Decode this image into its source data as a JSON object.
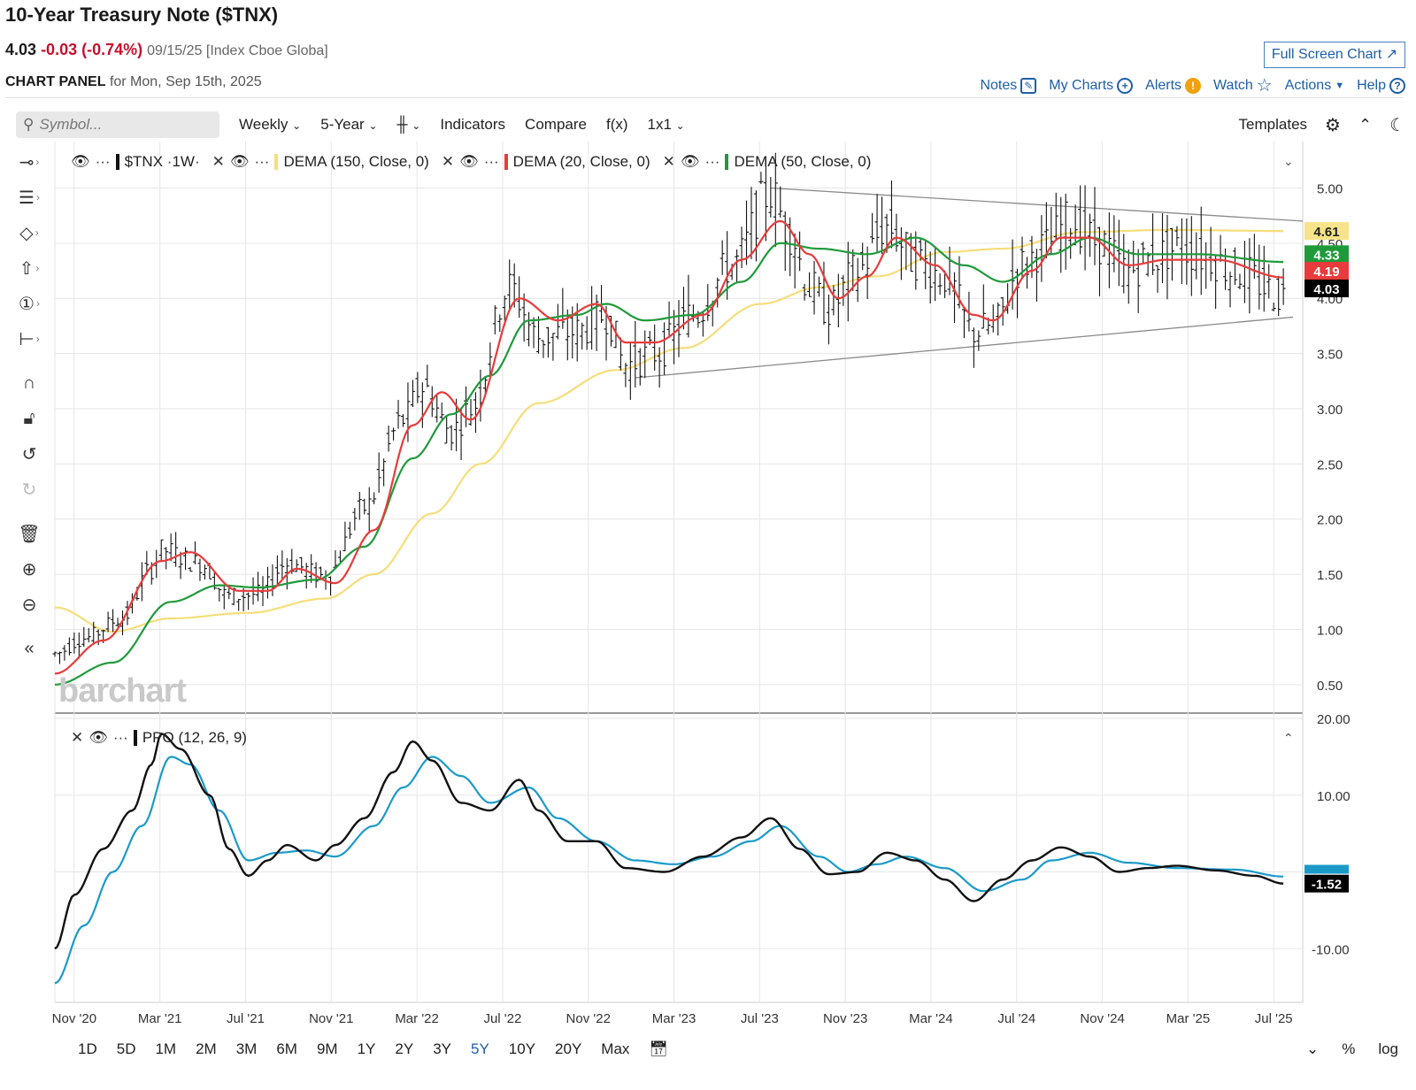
{
  "header": {
    "title": "10-Year Treasury Note ($TNX)",
    "last": "4.03",
    "change": "-0.03 (-0.74%)",
    "meta": "09/15/25 [Index Cboe Globa]",
    "full_screen_label": "Full Screen Chart",
    "panel_label": "CHART PANEL",
    "panel_for": "for Mon, Sep 15th, 2025"
  },
  "toplinks": {
    "notes": "Notes",
    "my_charts": "My Charts",
    "alerts": "Alerts",
    "watch": "Watch",
    "actions": "Actions",
    "help": "Help"
  },
  "toolbar": {
    "search_placeholder": "Symbol...",
    "interval": "Weekly",
    "range": "5-Year",
    "indicators": "Indicators",
    "compare": "Compare",
    "fx": "f(x)",
    "layout": "1x1",
    "templates": "Templates"
  },
  "legend": {
    "symbol": "$TNX",
    "symbol_interval": "1W",
    "dema150": "DEMA (150, Close, 0)",
    "dema20": "DEMA (20, Close, 0)",
    "dema50": "DEMA (50, Close, 0)",
    "ppo": "PPO (12, 26, 9)"
  },
  "watermark": "barchart",
  "timeframes": [
    "1D",
    "5D",
    "1M",
    "2M",
    "3M",
    "6M",
    "9M",
    "1Y",
    "2Y",
    "3Y",
    "5Y",
    "10Y",
    "20Y",
    "Max"
  ],
  "active_timeframe": "5Y",
  "bottom_right": {
    "percent": "%",
    "log": "log"
  },
  "colors": {
    "dema150": "#f5de7a",
    "dema20": "#e83b3b",
    "dema50": "#1f9a3a",
    "price": "#111111",
    "ppo": "#111111",
    "signal": "#1a9ac9",
    "accent": "#1d5fa8"
  },
  "chart_data": [
    {
      "type": "ohlc",
      "title": "",
      "x_ticks": [
        "Nov '20",
        "Mar '21",
        "Jul '21",
        "Nov '21",
        "Mar '22",
        "Jul '22",
        "Nov '22",
        "Mar '23",
        "Jul '23",
        "Nov '23",
        "Mar '24",
        "Jul '24",
        "Nov '24",
        "Mar '25",
        "Jul '25"
      ],
      "y_ticks": [
        "5.00",
        "4.50",
        "4.00",
        "3.50",
        "3.00",
        "2.50",
        "2.00",
        "1.50",
        "1.00",
        "0.50"
      ],
      "ylim": [
        0.25,
        5.1
      ],
      "grid": true,
      "last_values": {
        "dema150": "4.61",
        "dema50": "4.33",
        "dema20": "4.19",
        "price": "4.03"
      },
      "price_anchors": [
        {
          "t": 0,
          "v": 0.78
        },
        {
          "t": 6,
          "v": 0.92
        },
        {
          "t": 14,
          "v": 1.1
        },
        {
          "t": 20,
          "v": 1.55
        },
        {
          "t": 22,
          "v": 1.72
        },
        {
          "t": 30,
          "v": 1.6
        },
        {
          "t": 36,
          "v": 1.3
        },
        {
          "t": 42,
          "v": 1.32
        },
        {
          "t": 48,
          "v": 1.6
        },
        {
          "t": 56,
          "v": 1.48
        },
        {
          "t": 64,
          "v": 2.1
        },
        {
          "t": 72,
          "v": 2.9
        },
        {
          "t": 76,
          "v": 3.2
        },
        {
          "t": 82,
          "v": 2.8
        },
        {
          "t": 86,
          "v": 3.0
        },
        {
          "t": 94,
          "v": 4.1
        },
        {
          "t": 100,
          "v": 3.65
        },
        {
          "t": 108,
          "v": 3.7
        },
        {
          "t": 114,
          "v": 3.85
        },
        {
          "t": 118,
          "v": 3.4
        },
        {
          "t": 124,
          "v": 3.5
        },
        {
          "t": 132,
          "v": 3.85
        },
        {
          "t": 140,
          "v": 4.3
        },
        {
          "t": 148,
          "v": 4.95
        },
        {
          "t": 152,
          "v": 4.6
        },
        {
          "t": 156,
          "v": 4.1
        },
        {
          "t": 160,
          "v": 3.9
        },
        {
          "t": 166,
          "v": 4.25
        },
        {
          "t": 172,
          "v": 4.65
        },
        {
          "t": 178,
          "v": 4.35
        },
        {
          "t": 184,
          "v": 4.2
        },
        {
          "t": 190,
          "v": 3.7
        },
        {
          "t": 194,
          "v": 3.75
        },
        {
          "t": 200,
          "v": 4.3
        },
        {
          "t": 204,
          "v": 4.45
        },
        {
          "t": 210,
          "v": 4.7
        },
        {
          "t": 216,
          "v": 4.5
        },
        {
          "t": 222,
          "v": 4.25
        },
        {
          "t": 226,
          "v": 4.35
        },
        {
          "t": 232,
          "v": 4.45
        },
        {
          "t": 238,
          "v": 4.38
        },
        {
          "t": 244,
          "v": 4.25
        },
        {
          "t": 254,
          "v": 4.03
        }
      ],
      "dema20_anchors": [
        {
          "t": 0,
          "v": 0.6
        },
        {
          "t": 10,
          "v": 0.9
        },
        {
          "t": 22,
          "v": 1.62
        },
        {
          "t": 28,
          "v": 1.7
        },
        {
          "t": 38,
          "v": 1.35
        },
        {
          "t": 44,
          "v": 1.35
        },
        {
          "t": 50,
          "v": 1.55
        },
        {
          "t": 58,
          "v": 1.42
        },
        {
          "t": 66,
          "v": 1.9
        },
        {
          "t": 74,
          "v": 2.85
        },
        {
          "t": 80,
          "v": 3.15
        },
        {
          "t": 86,
          "v": 2.9
        },
        {
          "t": 96,
          "v": 4.0
        },
        {
          "t": 104,
          "v": 3.8
        },
        {
          "t": 112,
          "v": 3.95
        },
        {
          "t": 118,
          "v": 3.6
        },
        {
          "t": 124,
          "v": 3.6
        },
        {
          "t": 134,
          "v": 3.85
        },
        {
          "t": 142,
          "v": 4.35
        },
        {
          "t": 150,
          "v": 4.7
        },
        {
          "t": 156,
          "v": 4.4
        },
        {
          "t": 162,
          "v": 4.0
        },
        {
          "t": 168,
          "v": 4.2
        },
        {
          "t": 174,
          "v": 4.55
        },
        {
          "t": 182,
          "v": 4.3
        },
        {
          "t": 190,
          "v": 3.85
        },
        {
          "t": 194,
          "v": 3.8
        },
        {
          "t": 202,
          "v": 4.25
        },
        {
          "t": 208,
          "v": 4.55
        },
        {
          "t": 214,
          "v": 4.55
        },
        {
          "t": 222,
          "v": 4.3
        },
        {
          "t": 230,
          "v": 4.35
        },
        {
          "t": 240,
          "v": 4.35
        },
        {
          "t": 254,
          "v": 4.19
        }
      ],
      "dema50_anchors": [
        {
          "t": 0,
          "v": 0.5
        },
        {
          "t": 12,
          "v": 0.7
        },
        {
          "t": 24,
          "v": 1.25
        },
        {
          "t": 34,
          "v": 1.4
        },
        {
          "t": 42,
          "v": 1.38
        },
        {
          "t": 54,
          "v": 1.45
        },
        {
          "t": 64,
          "v": 1.75
        },
        {
          "t": 74,
          "v": 2.55
        },
        {
          "t": 82,
          "v": 2.95
        },
        {
          "t": 90,
          "v": 3.3
        },
        {
          "t": 98,
          "v": 3.8
        },
        {
          "t": 108,
          "v": 3.85
        },
        {
          "t": 114,
          "v": 3.95
        },
        {
          "t": 122,
          "v": 3.8
        },
        {
          "t": 132,
          "v": 3.85
        },
        {
          "t": 142,
          "v": 4.15
        },
        {
          "t": 150,
          "v": 4.5
        },
        {
          "t": 158,
          "v": 4.45
        },
        {
          "t": 168,
          "v": 4.4
        },
        {
          "t": 178,
          "v": 4.55
        },
        {
          "t": 188,
          "v": 4.3
        },
        {
          "t": 196,
          "v": 4.15
        },
        {
          "t": 206,
          "v": 4.4
        },
        {
          "t": 214,
          "v": 4.55
        },
        {
          "t": 224,
          "v": 4.4
        },
        {
          "t": 236,
          "v": 4.4
        },
        {
          "t": 254,
          "v": 4.33
        }
      ],
      "dema150_anchors": [
        {
          "t": 0,
          "v": 1.2
        },
        {
          "t": 12,
          "v": 0.98
        },
        {
          "t": 24,
          "v": 1.1
        },
        {
          "t": 40,
          "v": 1.15
        },
        {
          "t": 56,
          "v": 1.28
        },
        {
          "t": 66,
          "v": 1.5
        },
        {
          "t": 78,
          "v": 2.05
        },
        {
          "t": 88,
          "v": 2.5
        },
        {
          "t": 100,
          "v": 3.05
        },
        {
          "t": 116,
          "v": 3.35
        },
        {
          "t": 130,
          "v": 3.55
        },
        {
          "t": 146,
          "v": 3.95
        },
        {
          "t": 158,
          "v": 4.1
        },
        {
          "t": 170,
          "v": 4.2
        },
        {
          "t": 184,
          "v": 4.42
        },
        {
          "t": 196,
          "v": 4.45
        },
        {
          "t": 212,
          "v": 4.6
        },
        {
          "t": 230,
          "v": 4.62
        },
        {
          "t": 254,
          "v": 4.61
        }
      ],
      "trendlines": [
        {
          "from": {
            "t": 148,
            "v": 5.0
          },
          "to": {
            "t": 258,
            "v": 4.7
          }
        },
        {
          "from": {
            "t": 120,
            "v": 3.28
          },
          "to": {
            "t": 256,
            "v": 3.83
          }
        }
      ]
    },
    {
      "type": "line",
      "title": "",
      "y_ticks": [
        "20.00",
        "10.00",
        "",
        "-10.00"
      ],
      "ylim": [
        -17,
        20
      ],
      "last_value": "-1.52",
      "series": [
        {
          "name": "PPO (12, 26, 9)",
          "values": [
            {
              "t": 0,
              "v": -10
            },
            {
              "t": 4,
              "v": -3
            },
            {
              "t": 10,
              "v": 3
            },
            {
              "t": 16,
              "v": 8
            },
            {
              "t": 20,
              "v": 14
            },
            {
              "t": 22,
              "v": 18
            },
            {
              "t": 26,
              "v": 16
            },
            {
              "t": 32,
              "v": 10
            },
            {
              "t": 36,
              "v": 3
            },
            {
              "t": 40,
              "v": -0.5
            },
            {
              "t": 44,
              "v": 1.5
            },
            {
              "t": 48,
              "v": 3.5
            },
            {
              "t": 54,
              "v": 1.5
            },
            {
              "t": 58,
              "v": 3.5
            },
            {
              "t": 64,
              "v": 7
            },
            {
              "t": 70,
              "v": 13
            },
            {
              "t": 74,
              "v": 17
            },
            {
              "t": 78,
              "v": 14.5
            },
            {
              "t": 84,
              "v": 9
            },
            {
              "t": 90,
              "v": 8
            },
            {
              "t": 96,
              "v": 12
            },
            {
              "t": 100,
              "v": 8
            },
            {
              "t": 106,
              "v": 4
            },
            {
              "t": 112,
              "v": 4
            },
            {
              "t": 118,
              "v": 0.5
            },
            {
              "t": 126,
              "v": 0
            },
            {
              "t": 134,
              "v": 2
            },
            {
              "t": 142,
              "v": 4.5
            },
            {
              "t": 148,
              "v": 7
            },
            {
              "t": 154,
              "v": 3
            },
            {
              "t": 160,
              "v": -0.3
            },
            {
              "t": 166,
              "v": 0
            },
            {
              "t": 172,
              "v": 2.5
            },
            {
              "t": 178,
              "v": 1.5
            },
            {
              "t": 184,
              "v": -1
            },
            {
              "t": 190,
              "v": -3.8
            },
            {
              "t": 196,
              "v": -1
            },
            {
              "t": 202,
              "v": 1.5
            },
            {
              "t": 208,
              "v": 3.2
            },
            {
              "t": 214,
              "v": 2
            },
            {
              "t": 220,
              "v": 0
            },
            {
              "t": 226,
              "v": 0.5
            },
            {
              "t": 232,
              "v": 0.8
            },
            {
              "t": 240,
              "v": 0.2
            },
            {
              "t": 248,
              "v": -0.5
            },
            {
              "t": 254,
              "v": -1.52
            }
          ]
        },
        {
          "name": "signal",
          "values": [
            {
              "t": 0,
              "v": -14.5
            },
            {
              "t": 6,
              "v": -7
            },
            {
              "t": 12,
              "v": 0
            },
            {
              "t": 18,
              "v": 6
            },
            {
              "t": 24,
              "v": 15
            },
            {
              "t": 28,
              "v": 14
            },
            {
              "t": 34,
              "v": 8
            },
            {
              "t": 40,
              "v": 1.5
            },
            {
              "t": 46,
              "v": 2.5
            },
            {
              "t": 52,
              "v": 2.8
            },
            {
              "t": 58,
              "v": 2
            },
            {
              "t": 66,
              "v": 6
            },
            {
              "t": 72,
              "v": 11
            },
            {
              "t": 78,
              "v": 15
            },
            {
              "t": 84,
              "v": 12.5
            },
            {
              "t": 90,
              "v": 9
            },
            {
              "t": 98,
              "v": 11
            },
            {
              "t": 104,
              "v": 7
            },
            {
              "t": 112,
              "v": 4
            },
            {
              "t": 120,
              "v": 1.5
            },
            {
              "t": 128,
              "v": 1
            },
            {
              "t": 136,
              "v": 2
            },
            {
              "t": 144,
              "v": 4
            },
            {
              "t": 150,
              "v": 6
            },
            {
              "t": 158,
              "v": 2
            },
            {
              "t": 164,
              "v": 0
            },
            {
              "t": 170,
              "v": 1
            },
            {
              "t": 176,
              "v": 2
            },
            {
              "t": 184,
              "v": 0.5
            },
            {
              "t": 192,
              "v": -2.5
            },
            {
              "t": 200,
              "v": -1
            },
            {
              "t": 206,
              "v": 1.5
            },
            {
              "t": 214,
              "v": 2.5
            },
            {
              "t": 222,
              "v": 1.2
            },
            {
              "t": 232,
              "v": 0.5
            },
            {
              "t": 244,
              "v": 0.3
            },
            {
              "t": 254,
              "v": -0.6
            }
          ]
        }
      ]
    }
  ]
}
